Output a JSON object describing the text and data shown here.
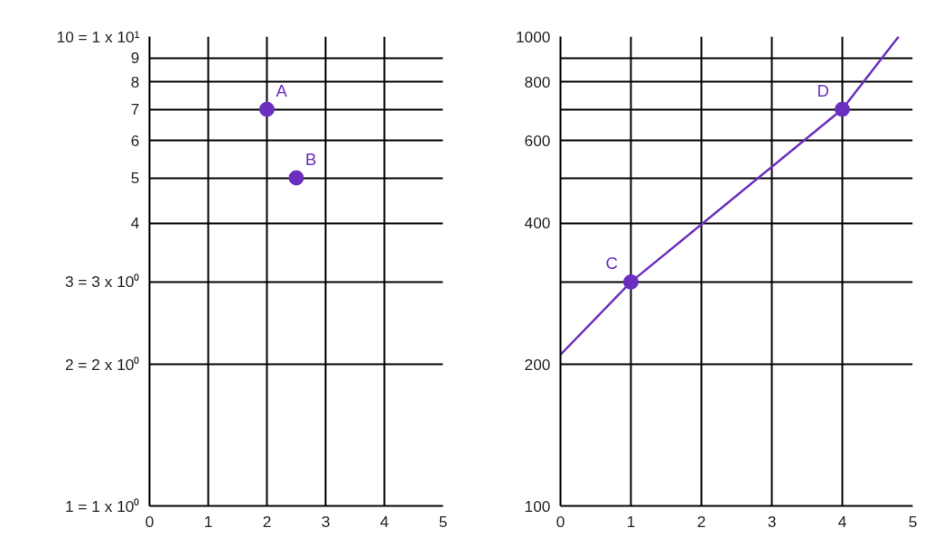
{
  "chart_data": [
    {
      "type": "scatter",
      "xlim": [
        0,
        5
      ],
      "xticks": [
        0,
        1,
        2,
        3,
        4,
        5
      ],
      "ylim": [
        1,
        10
      ],
      "log": "y",
      "grid": true,
      "marker": "circle",
      "yticks": [
        {
          "value": 1,
          "label": "1 = 1 x 10⁰"
        },
        {
          "value": 2,
          "label": "2 = 2 x 10⁰"
        },
        {
          "value": 3,
          "label": "3 = 3 x 10⁰"
        },
        4,
        5,
        6,
        7,
        8,
        9,
        {
          "value": 10,
          "label": "10 = 1 x 10¹"
        }
      ],
      "series": [
        {
          "color": "#6b2fbf",
          "x": [
            2,
            2.5
          ],
          "values": [
            7,
            5
          ]
        }
      ],
      "annotations": [
        {
          "text": "A",
          "x": 2,
          "y": 7
        },
        {
          "text": "B",
          "x": 2.5,
          "y": 5
        }
      ]
    },
    {
      "type": "scatter",
      "xlim": [
        0,
        5
      ],
      "xticks": [
        0,
        1,
        2,
        3,
        4,
        5
      ],
      "ylim": [
        100,
        1000
      ],
      "log": "y",
      "grid": true,
      "marker": "circle",
      "yticks": [
        100,
        200,
        {
          "value": 300,
          "label": null
        },
        400,
        {
          "value": 500,
          "label": null
        },
        600,
        {
          "value": 700,
          "label": null
        },
        800,
        {
          "value": 900,
          "label": null
        },
        1000
      ],
      "series": [
        {
          "type": "line",
          "marker": "none",
          "color": "#6b2fbf",
          "x": [
            0,
            1,
            4,
            4.8
          ],
          "values": [
            210,
            300,
            700,
            1000
          ]
        },
        {
          "color": "#6b2fbf",
          "x": [
            1,
            4
          ],
          "values": [
            300,
            700
          ]
        }
      ],
      "annotations": [
        {
          "text": "C",
          "x": 1,
          "y": 300
        },
        {
          "text": "D",
          "x": 4,
          "y": 700
        }
      ]
    }
  ]
}
